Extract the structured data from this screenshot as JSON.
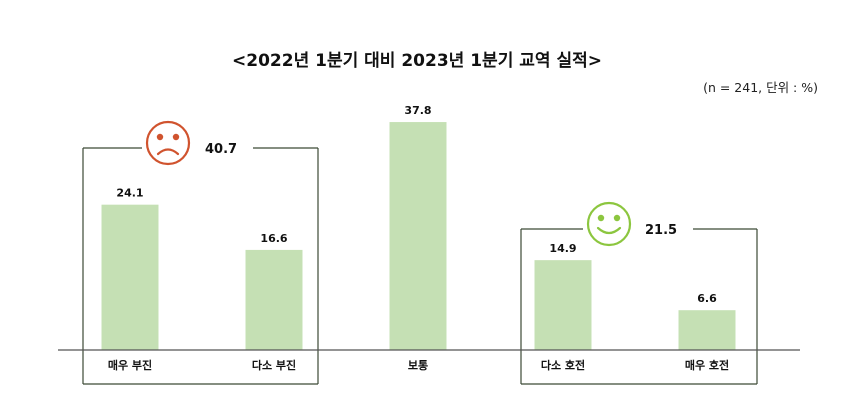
{
  "chart_data": {
    "type": "bar",
    "title": "<2022년 1분기 대비 2023년 1분기 교역 실적>",
    "subtitle": "(n = 241, 단위 : %)",
    "categories": [
      "매우 부진",
      "다소 부진",
      "보통",
      "다소 호전",
      "매우 호전"
    ],
    "values": [
      24.1,
      16.6,
      37.8,
      14.9,
      6.6
    ],
    "value_labels": [
      "24.1",
      "16.6",
      "37.8",
      "14.9",
      "6.6"
    ],
    "ylim": [
      0,
      42
    ],
    "grid": false,
    "groups": [
      {
        "kind": "negative",
        "label": "40.7",
        "categories": [
          "매우 부진",
          "다소 부진"
        ],
        "icon": "sad-face-icon",
        "color": "#d0532e"
      },
      {
        "kind": "positive",
        "label": "21.5",
        "categories": [
          "다소 호전",
          "매우 호전"
        ],
        "icon": "smiley-face-icon",
        "color": "#8cc63f"
      }
    ],
    "colors": {
      "bar": "#c5e0b4",
      "group_border": "#3c4a36",
      "axis": "#555555"
    }
  }
}
